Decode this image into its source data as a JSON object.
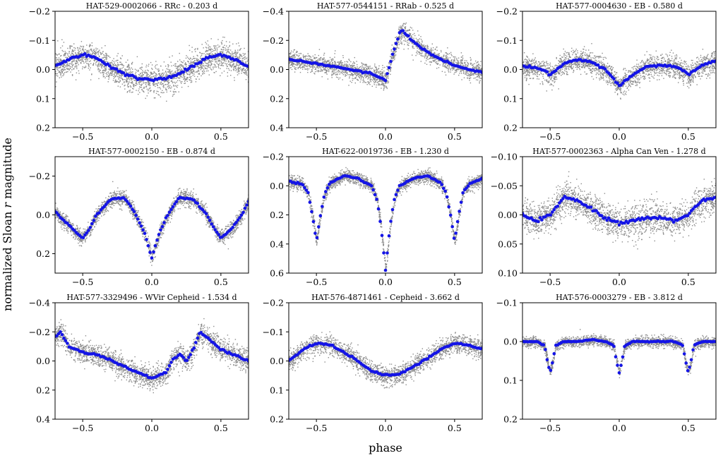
{
  "figure": {
    "xlabel": "phase",
    "ylabel_prefix": "normalized Sloan ",
    "ylabel_var": "r",
    "ylabel_suffix": " magnitude"
  },
  "colors": {
    "scatter": "#8c8c8c",
    "binned": "#1414e6",
    "axis": "#000000"
  },
  "chart_data": [
    {
      "type": "scatter",
      "title": "HAT-529-0002066 - RRc - 0.203 d",
      "xlim": [
        -0.7,
        0.7
      ],
      "ylim": [
        0.2,
        -0.2
      ],
      "y_inverted": true,
      "xticks": [
        -0.5,
        0.0,
        0.5
      ],
      "xtick_labels": [
        "−0.5",
        "0.0",
        "0.5"
      ],
      "yticks": [
        -0.2,
        -0.1,
        0.0,
        0.1,
        0.2
      ],
      "ytick_labels": [
        "−0.2",
        "−0.1",
        "0.0",
        "0.1",
        "0.2"
      ],
      "binned_phase": [
        -0.7,
        -0.6,
        -0.5,
        -0.4,
        -0.3,
        -0.2,
        -0.1,
        0.0,
        0.1,
        0.2,
        0.3,
        0.4,
        0.5,
        0.6,
        0.7
      ],
      "binned_mag": [
        -0.01,
        -0.035,
        -0.05,
        -0.04,
        -0.01,
        0.015,
        0.03,
        0.035,
        0.03,
        0.015,
        -0.01,
        -0.04,
        -0.05,
        -0.035,
        -0.01
      ],
      "scatter_spread": 0.045
    },
    {
      "type": "scatter",
      "title": "HAT-577-0544151 - RRab - 0.525 d",
      "xlim": [
        -0.7,
        0.7
      ],
      "ylim": [
        0.4,
        -0.4
      ],
      "y_inverted": true,
      "xticks": [
        -0.5,
        0.0,
        0.5
      ],
      "xtick_labels": [
        "−0.5",
        "0.0",
        "0.5"
      ],
      "yticks": [
        -0.4,
        -0.2,
        0.0,
        0.2,
        0.4
      ],
      "ytick_labels": [
        "−0.4",
        "−0.2",
        "0.0",
        "0.2",
        "0.4"
      ],
      "binned_phase": [
        -0.7,
        -0.5,
        -0.3,
        -0.1,
        0.0,
        0.05,
        0.1,
        0.12,
        0.2,
        0.3,
        0.4,
        0.5,
        0.6,
        0.7
      ],
      "binned_mag": [
        -0.07,
        -0.04,
        -0.01,
        0.03,
        0.07,
        -0.1,
        -0.25,
        -0.27,
        -0.19,
        -0.12,
        -0.07,
        -0.03,
        0.0,
        0.02
      ],
      "scatter_spread": 0.06
    },
    {
      "type": "scatter",
      "title": "HAT-577-0004630 - EB - 0.580 d",
      "xlim": [
        -0.7,
        0.7
      ],
      "ylim": [
        0.2,
        -0.2
      ],
      "y_inverted": true,
      "xticks": [
        -0.5,
        0.0,
        0.5
      ],
      "xtick_labels": [
        "−0.5",
        "0.0",
        "0.5"
      ],
      "yticks": [
        -0.2,
        -0.1,
        0.0,
        0.1,
        0.2
      ],
      "ytick_labels": [
        "−0.2",
        "−0.1",
        "0.0",
        "0.1",
        "0.2"
      ],
      "binned_phase": [
        -0.7,
        -0.6,
        -0.52,
        -0.5,
        -0.48,
        -0.4,
        -0.3,
        -0.2,
        -0.1,
        -0.04,
        0.0,
        0.04,
        0.1,
        0.2,
        0.3,
        0.4,
        0.48,
        0.5,
        0.52,
        0.6,
        0.7
      ],
      "binned_mag": [
        -0.01,
        -0.005,
        0.01,
        0.02,
        0.01,
        -0.02,
        -0.035,
        -0.025,
        0.0,
        0.03,
        0.055,
        0.04,
        0.02,
        -0.01,
        -0.015,
        -0.01,
        0.01,
        0.02,
        0.01,
        -0.015,
        -0.03
      ],
      "scatter_spread": 0.035
    },
    {
      "type": "scatter",
      "title": "HAT-577-0002150 - EB - 0.874 d",
      "xlim": [
        -0.7,
        0.7
      ],
      "ylim": [
        0.3,
        -0.3
      ],
      "y_inverted": true,
      "xticks": [
        -0.5,
        0.0,
        0.5
      ],
      "xtick_labels": [
        "−0.5",
        "0.0",
        "0.5"
      ],
      "yticks": [
        -0.2,
        0.0,
        0.2
      ],
      "ytick_labels": [
        "−0.2",
        "0.0",
        "0.2"
      ],
      "binned_phase": [
        -0.7,
        -0.65,
        -0.6,
        -0.55,
        -0.5,
        -0.45,
        -0.4,
        -0.3,
        -0.2,
        -0.15,
        -0.1,
        -0.05,
        0.0,
        0.05,
        0.1,
        0.15,
        0.2,
        0.3,
        0.4,
        0.45,
        0.5,
        0.55,
        0.6,
        0.65,
        0.7
      ],
      "binned_mag": [
        -0.02,
        0.02,
        0.05,
        0.09,
        0.12,
        0.07,
        0.0,
        -0.08,
        -0.09,
        -0.04,
        0.02,
        0.1,
        0.22,
        0.1,
        0.02,
        -0.04,
        -0.09,
        -0.08,
        0.0,
        0.07,
        0.12,
        0.09,
        0.05,
        0.0,
        -0.07
      ],
      "scatter_spread": 0.035
    },
    {
      "type": "scatter",
      "title": "HAT-622-0019736 - EB - 1.230 d",
      "xlim": [
        -0.7,
        0.7
      ],
      "ylim": [
        0.6,
        -0.2
      ],
      "y_inverted": true,
      "xticks": [
        -0.5,
        0.0,
        0.5
      ],
      "xtick_labels": [
        "−0.5",
        "0.0",
        "0.5"
      ],
      "yticks": [
        -0.2,
        0.0,
        0.2,
        0.4,
        0.6
      ],
      "ytick_labels": [
        "−0.2",
        "0.0",
        "0.2",
        "0.4",
        "0.6"
      ],
      "binned_phase": [
        -0.7,
        -0.6,
        -0.56,
        -0.53,
        -0.5,
        -0.47,
        -0.44,
        -0.4,
        -0.3,
        -0.2,
        -0.1,
        -0.06,
        -0.03,
        0.0,
        0.03,
        0.06,
        0.1,
        0.2,
        0.3,
        0.4,
        0.44,
        0.47,
        0.5,
        0.53,
        0.56,
        0.6,
        0.7
      ],
      "binned_mag": [
        -0.03,
        -0.01,
        0.05,
        0.2,
        0.38,
        0.2,
        0.05,
        -0.02,
        -0.07,
        -0.05,
        0.0,
        0.1,
        0.3,
        0.58,
        0.3,
        0.1,
        0.0,
        -0.05,
        -0.07,
        -0.02,
        0.05,
        0.2,
        0.38,
        0.2,
        0.05,
        -0.01,
        -0.05
      ],
      "scatter_spread": 0.04
    },
    {
      "type": "scatter",
      "title": "HAT-577-0002363 - Alpha Can Ven - 1.278 d",
      "xlim": [
        -0.7,
        0.7
      ],
      "ylim": [
        0.1,
        -0.1
      ],
      "y_inverted": true,
      "xticks": [
        -0.5,
        0.0,
        0.5
      ],
      "xtick_labels": [
        "−0.5",
        "0.0",
        "0.5"
      ],
      "yticks": [
        -0.1,
        -0.05,
        0.0,
        0.05,
        0.1
      ],
      "ytick_labels": [
        "−0.10",
        "−0.05",
        "0.00",
        "0.05",
        "0.10"
      ],
      "binned_phase": [
        -0.7,
        -0.6,
        -0.5,
        -0.4,
        -0.3,
        -0.2,
        -0.1,
        0.0,
        0.1,
        0.2,
        0.3,
        0.4,
        0.5,
        0.6,
        0.7
      ],
      "binned_mag": [
        0.0,
        0.01,
        0.0,
        -0.03,
        -0.025,
        -0.01,
        0.005,
        0.015,
        0.01,
        0.005,
        0.005,
        0.01,
        0.0,
        -0.025,
        -0.03
      ],
      "scatter_spread": 0.025
    },
    {
      "type": "scatter",
      "title": "HAT-577-3329496 - WVir Cepheid - 1.534 d",
      "xlim": [
        -0.7,
        0.7
      ],
      "ylim": [
        0.4,
        -0.4
      ],
      "y_inverted": true,
      "xticks": [
        -0.5,
        0.0,
        0.5
      ],
      "xtick_labels": [
        "−0.5",
        "0.0",
        "0.5"
      ],
      "yticks": [
        -0.4,
        -0.2,
        0.0,
        0.2,
        0.4
      ],
      "ytick_labels": [
        "−0.4",
        "−0.2",
        "0.0",
        "0.2",
        "0.4"
      ],
      "binned_phase": [
        -0.7,
        -0.66,
        -0.6,
        -0.5,
        -0.4,
        -0.3,
        -0.2,
        -0.1,
        0.0,
        0.1,
        0.15,
        0.2,
        0.25,
        0.3,
        0.35,
        0.4,
        0.5,
        0.6,
        0.7
      ],
      "binned_mag": [
        -0.17,
        -0.2,
        -0.1,
        -0.06,
        -0.04,
        -0.01,
        0.04,
        0.08,
        0.12,
        0.08,
        -0.01,
        -0.05,
        0.0,
        -0.08,
        -0.2,
        -0.16,
        -0.08,
        -0.04,
        0.0
      ],
      "scatter_spread": 0.07
    },
    {
      "type": "scatter",
      "title": "HAT-576-4871461 - Cepheid - 3.662 d",
      "xlim": [
        -0.7,
        0.7
      ],
      "ylim": [
        0.2,
        -0.2
      ],
      "y_inverted": true,
      "xticks": [
        -0.5,
        0.0,
        0.5
      ],
      "xtick_labels": [
        "−0.5",
        "0.0",
        "0.5"
      ],
      "yticks": [
        -0.2,
        -0.1,
        0.0,
        0.1,
        0.2
      ],
      "ytick_labels": [
        "−0.2",
        "−0.1",
        "0.0",
        "0.1",
        "0.2"
      ],
      "binned_phase": [
        -0.7,
        -0.6,
        -0.5,
        -0.4,
        -0.3,
        -0.2,
        -0.1,
        0.0,
        0.1,
        0.2,
        0.3,
        0.4,
        0.5,
        0.6,
        0.7
      ],
      "binned_mag": [
        0.0,
        -0.04,
        -0.06,
        -0.055,
        -0.03,
        0.0,
        0.035,
        0.05,
        0.045,
        0.02,
        -0.01,
        -0.04,
        -0.06,
        -0.055,
        -0.04
      ],
      "scatter_spread": 0.03
    },
    {
      "type": "scatter",
      "title": "HAT-576-0003279 - EB - 3.812 d",
      "xlim": [
        -0.7,
        0.7
      ],
      "ylim": [
        0.2,
        -0.1
      ],
      "y_inverted": true,
      "xticks": [
        -0.5,
        0.0,
        0.5
      ],
      "xtick_labels": [
        "−0.5",
        "0.0",
        "0.5"
      ],
      "yticks": [
        -0.1,
        0.0,
        0.1,
        0.2
      ],
      "ytick_labels": [
        "−0.1",
        "0.0",
        "0.1",
        "0.2"
      ],
      "binned_phase": [
        -0.7,
        -0.6,
        -0.54,
        -0.52,
        -0.5,
        -0.48,
        -0.46,
        -0.4,
        -0.3,
        -0.2,
        -0.1,
        -0.04,
        -0.02,
        0.0,
        0.02,
        0.04,
        0.1,
        0.2,
        0.3,
        0.4,
        0.46,
        0.48,
        0.5,
        0.52,
        0.54,
        0.6,
        0.7
      ],
      "binned_mag": [
        0.0,
        0.0,
        0.01,
        0.05,
        0.08,
        0.05,
        0.01,
        0.0,
        0.0,
        -0.005,
        0.0,
        0.01,
        0.05,
        0.08,
        0.05,
        0.01,
        0.0,
        0.0,
        0.0,
        0.0,
        0.01,
        0.05,
        0.08,
        0.05,
        0.01,
        0.0,
        0.0
      ],
      "scatter_spread": 0.012
    }
  ]
}
